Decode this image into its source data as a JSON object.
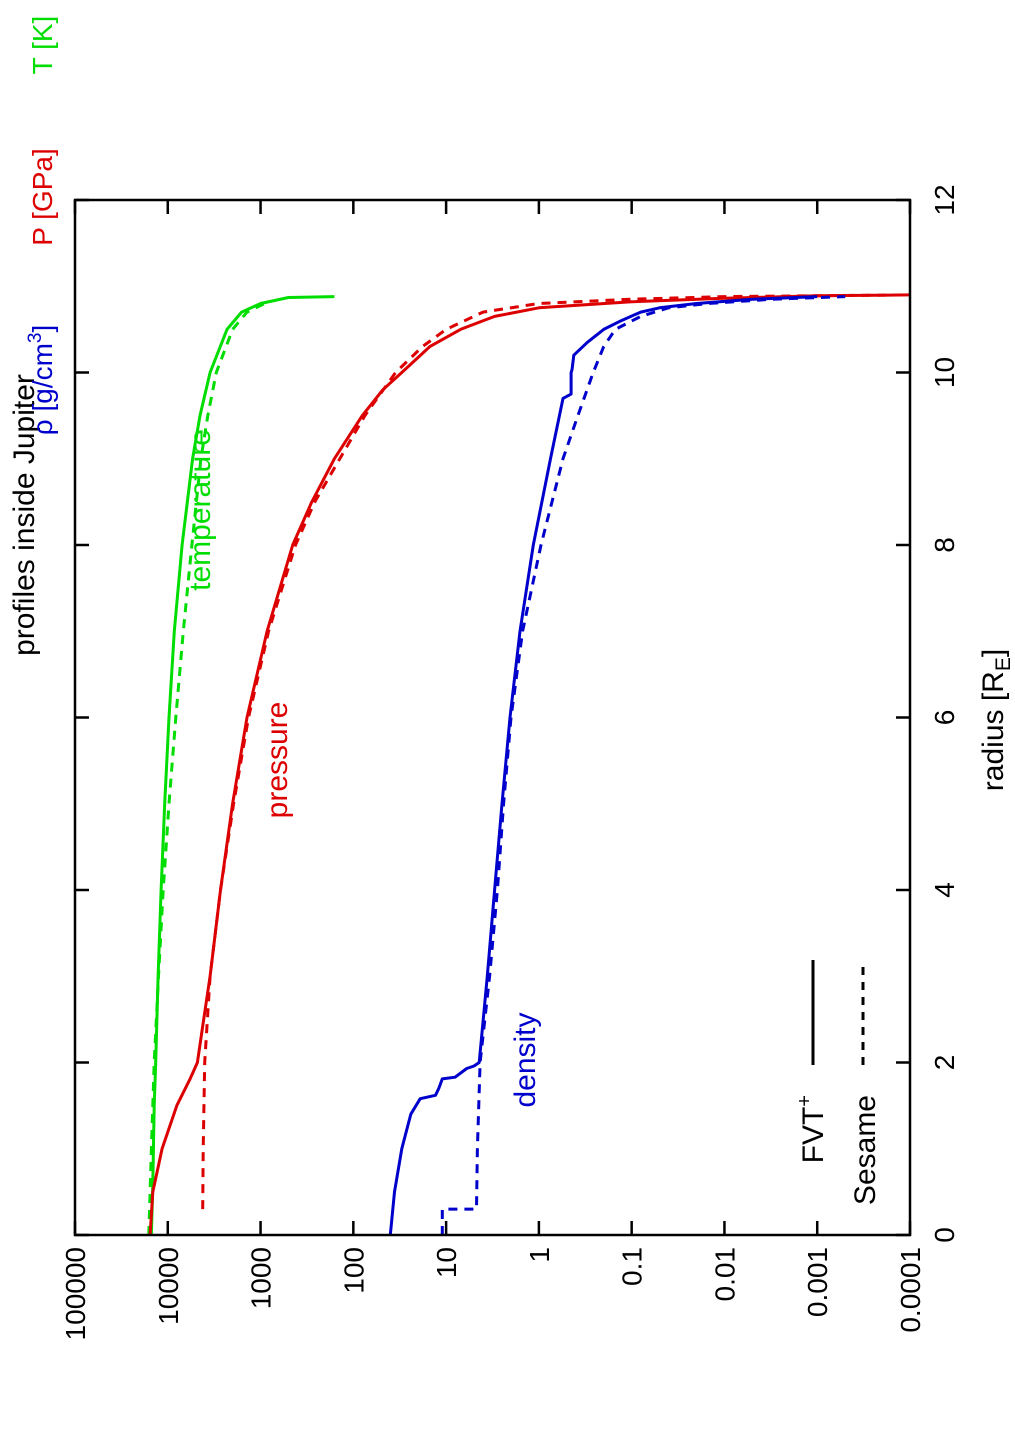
{
  "chart_data": {
    "type": "line",
    "title": "profiles inside Jupiter",
    "xlabel": "radius [R",
    "xlabel_sub": "E",
    "xlabel_close": "]",
    "ylabel_temperature": "T [K]",
    "ylabel_pressure": "P [GPa]",
    "ylabel_density_pre": "ρ [g/cm",
    "ylabel_density_sup": "3",
    "ylabel_density_post": "]",
    "xlim": [
      0,
      12
    ],
    "ylim": [
      0.0001,
      100000
    ],
    "yscale": "log",
    "x_ticks": [
      "0",
      "2",
      "4",
      "6",
      "8",
      "10",
      "12"
    ],
    "y_ticks": [
      "100000",
      "10000",
      "1000",
      "100",
      "10",
      "1",
      "0.1",
      "0.01",
      "0.001",
      "0.0001"
    ],
    "grid": false,
    "annotations": {
      "temperature": "temperature",
      "pressure": "pressure",
      "density": "density"
    },
    "legend": {
      "placement": "bottom-left",
      "entries": [
        {
          "name": "FVT",
          "sup": "+",
          "style": "solid"
        },
        {
          "name": "Sesame",
          "style": "dashed"
        }
      ]
    },
    "colors": {
      "temperature": "#00dd00",
      "pressure": "#dd0000",
      "density": "#0000cc",
      "axis": "#000000"
    },
    "series": [
      {
        "quantity": "temperature",
        "model": "FVT+",
        "style": "solid",
        "points": [
          [
            0,
            15000
          ],
          [
            0.6,
            14500
          ],
          [
            1.5,
            14000
          ],
          [
            2,
            13500
          ],
          [
            3,
            12700
          ],
          [
            4,
            11800
          ],
          [
            5,
            10800
          ],
          [
            6,
            9700
          ],
          [
            7,
            8500
          ],
          [
            8,
            7000
          ],
          [
            9,
            5400
          ],
          [
            9.5,
            4500
          ],
          [
            10,
            3500
          ],
          [
            10.5,
            2300
          ],
          [
            10.7,
            1600
          ],
          [
            10.8,
            1000
          ],
          [
            10.87,
            500
          ],
          [
            10.88,
            160
          ]
        ]
      },
      {
        "quantity": "temperature",
        "model": "Sesame",
        "style": "dashed",
        "points": [
          [
            0,
            16000
          ],
          [
            1,
            15000
          ],
          [
            2,
            14000
          ],
          [
            3,
            12600
          ],
          [
            4,
            11200
          ],
          [
            5,
            9700
          ],
          [
            6,
            8200
          ],
          [
            7,
            6800
          ],
          [
            8,
            5500
          ],
          [
            9,
            4400
          ],
          [
            9.5,
            3700
          ],
          [
            10,
            3000
          ],
          [
            10.5,
            2000
          ],
          [
            10.7,
            1400
          ],
          [
            10.8,
            900
          ]
        ]
      },
      {
        "quantity": "pressure",
        "model": "FVT+",
        "style": "solid",
        "points": [
          [
            0,
            15500
          ],
          [
            0.5,
            14500
          ],
          [
            1,
            11500
          ],
          [
            1.5,
            8000
          ],
          [
            1.8,
            5800
          ],
          [
            2,
            4800
          ],
          [
            2.5,
            4100
          ],
          [
            3,
            3500
          ],
          [
            4,
            2700
          ],
          [
            5,
            2000
          ],
          [
            6,
            1400
          ],
          [
            7,
            850
          ],
          [
            8,
            450
          ],
          [
            8.5,
            280
          ],
          [
            9,
            160
          ],
          [
            9.5,
            80
          ],
          [
            9.8,
            48
          ],
          [
            10,
            30
          ],
          [
            10.3,
            15
          ],
          [
            10.5,
            7
          ],
          [
            10.65,
            3
          ],
          [
            10.75,
            1
          ],
          [
            10.82,
            0.1
          ],
          [
            10.86,
            0.01
          ],
          [
            10.89,
            0.001
          ],
          [
            10.9,
            0.0001
          ]
        ]
      },
      {
        "quantity": "pressure",
        "model": "Sesame",
        "style": "dashed",
        "points": [
          [
            0.3,
            4200
          ],
          [
            1,
            4150
          ],
          [
            2,
            4000
          ],
          [
            3,
            3500
          ],
          [
            4,
            2700
          ],
          [
            5,
            1950
          ],
          [
            6,
            1350
          ],
          [
            7,
            820
          ],
          [
            8,
            420
          ],
          [
            8.5,
            260
          ],
          [
            9,
            140
          ],
          [
            9.5,
            75
          ],
          [
            10,
            35
          ],
          [
            10.3,
            18
          ],
          [
            10.5,
            10
          ],
          [
            10.7,
            4
          ],
          [
            10.8,
            1
          ],
          [
            10.85,
            0.1
          ],
          [
            10.88,
            0.01
          ],
          [
            10.9,
            0.0001
          ]
        ]
      },
      {
        "quantity": "density",
        "model": "FVT+",
        "style": "solid",
        "points": [
          [
            0,
            40
          ],
          [
            0.5,
            36
          ],
          [
            1,
            30
          ],
          [
            1.4,
            24
          ],
          [
            1.58,
            19
          ],
          [
            1.62,
            13
          ],
          [
            1.7,
            12
          ],
          [
            1.81,
            11
          ],
          [
            1.83,
            8
          ],
          [
            1.93,
            6
          ],
          [
            1.96,
            5
          ],
          [
            2,
            4.4
          ],
          [
            3,
            3.6
          ],
          [
            4,
            3
          ],
          [
            5,
            2.5
          ],
          [
            6,
            2.05
          ],
          [
            7,
            1.6
          ],
          [
            8,
            1.15
          ],
          [
            9,
            0.75
          ],
          [
            9.7,
            0.55
          ],
          [
            9.75,
            0.45
          ],
          [
            10,
            0.45
          ],
          [
            10.03,
            0.44
          ],
          [
            10.2,
            0.42
          ],
          [
            10.35,
            0.3
          ],
          [
            10.5,
            0.2
          ],
          [
            10.6,
            0.13
          ],
          [
            10.7,
            0.08
          ],
          [
            10.75,
            0.05
          ],
          [
            10.8,
            0.02
          ],
          [
            10.85,
            0.005
          ],
          [
            10.88,
            0.001
          ]
        ]
      },
      {
        "quantity": "density",
        "model": "Sesame",
        "style": "dashed",
        "points": [
          [
            0,
            11
          ],
          [
            0.3,
            11
          ],
          [
            0.3,
            4.7
          ],
          [
            1,
            4.6
          ],
          [
            2,
            4.3
          ],
          [
            3,
            3.4
          ],
          [
            4,
            2.8
          ],
          [
            5,
            2.4
          ],
          [
            6,
            2
          ],
          [
            7,
            1.5
          ],
          [
            8,
            0.95
          ],
          [
            9,
            0.55
          ],
          [
            9.5,
            0.38
          ],
          [
            10,
            0.26
          ],
          [
            10.3,
            0.2
          ],
          [
            10.5,
            0.15
          ],
          [
            10.65,
            0.08
          ],
          [
            10.75,
            0.04
          ],
          [
            10.8,
            0.015
          ],
          [
            10.85,
            0.003
          ],
          [
            10.88,
            0.0005
          ]
        ]
      }
    ]
  }
}
